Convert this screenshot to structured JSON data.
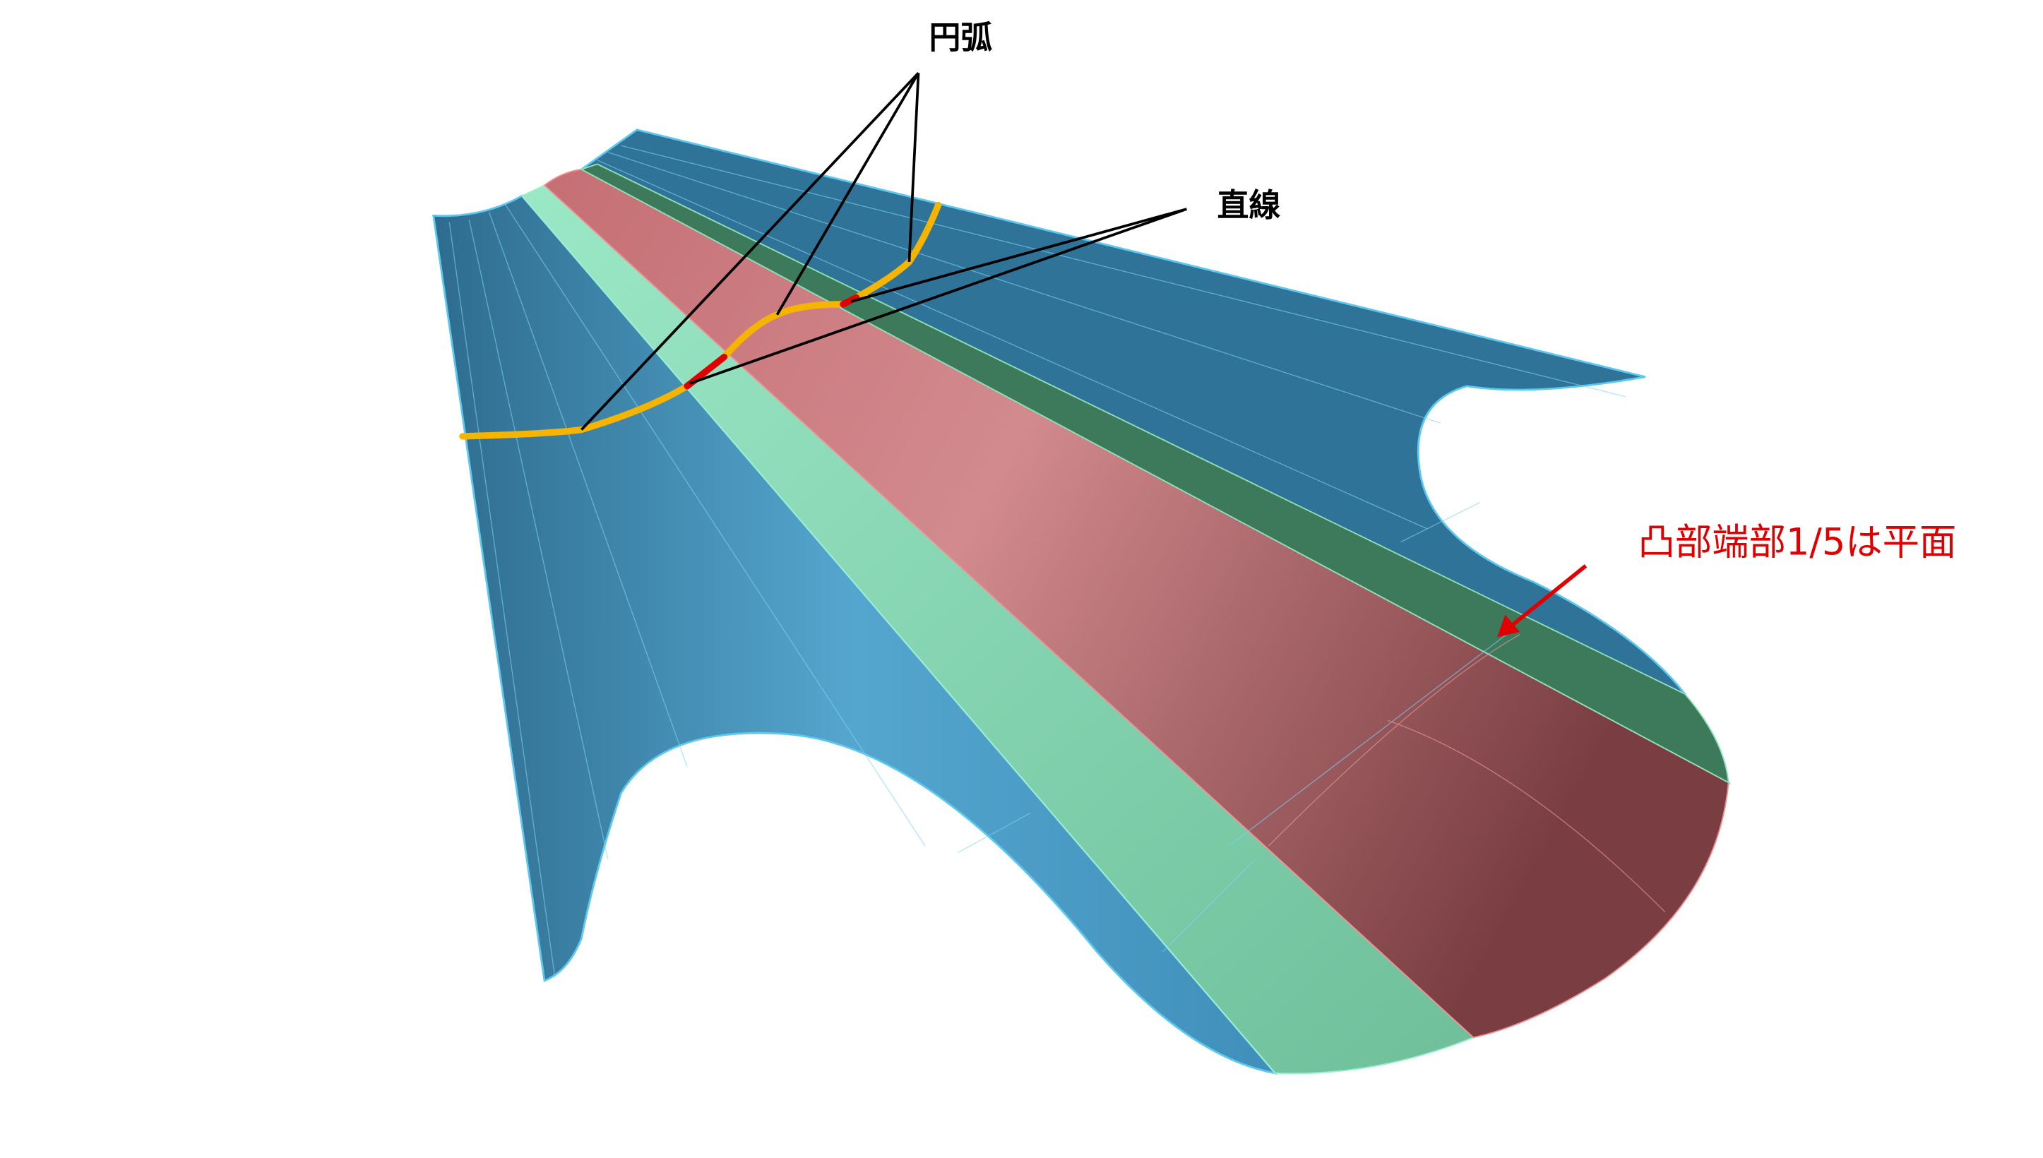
{
  "labels": {
    "arc": "円弧",
    "straight": "直線",
    "note": "凸部端部1/5は平面"
  }
}
